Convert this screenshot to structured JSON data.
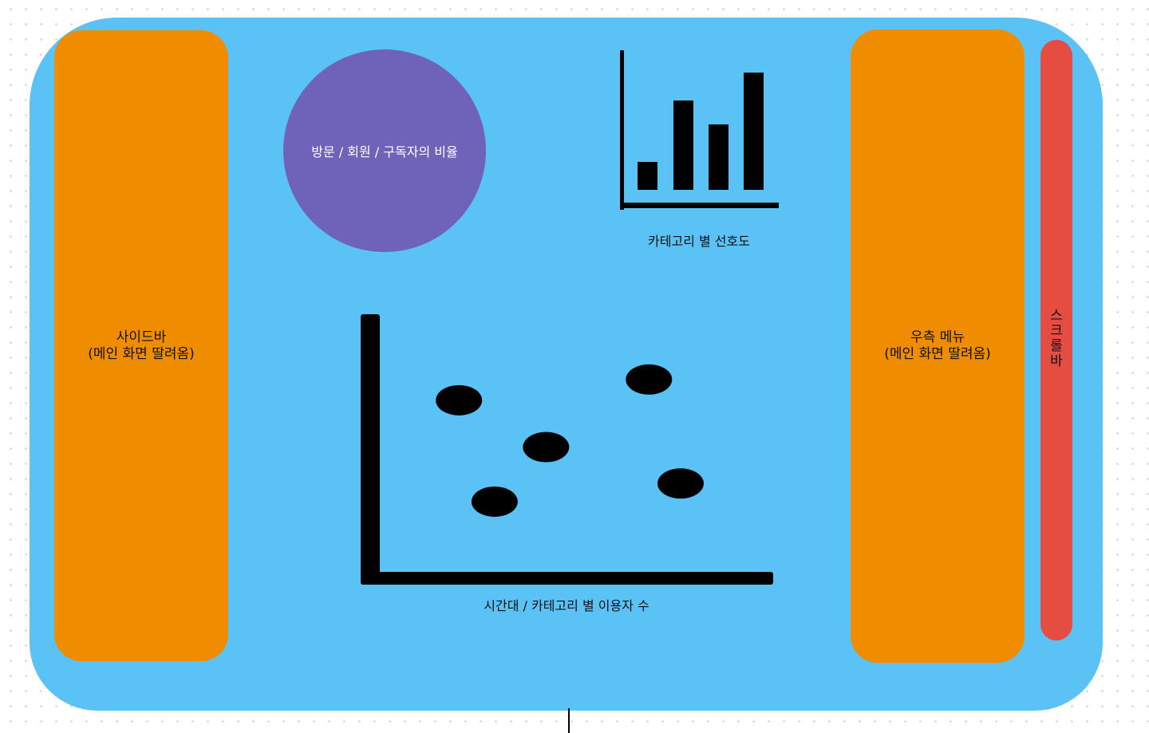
{
  "sidebar": {
    "label": "사이드바\n(메인 화면 딸려옴)"
  },
  "right_menu": {
    "label": "우측 메뉴\n(메인 화면 딸려옴)"
  },
  "scrollbar": {
    "label": "스크롤바"
  },
  "ratio_widget": {
    "label": "방문 / 회원 / 구독자의 비율"
  },
  "colors": {
    "canvas": "#5bc2f6",
    "panel": "#ef8c00",
    "scrollbar": "#e64d42",
    "circle": "#6f63b9",
    "ink": "#000000"
  },
  "chart_data": [
    {
      "type": "bar",
      "caption": "카테고리 별 선호도",
      "values": [
        35,
        112,
        82,
        147
      ],
      "ylim": [
        0,
        170
      ],
      "grid": false
    },
    {
      "type": "scatter",
      "caption": "시간대 / 카테고리 별 이용자 수",
      "points": [
        {
          "x": 20,
          "y": 66
        },
        {
          "x": 29,
          "y": 27
        },
        {
          "x": 42,
          "y": 48
        },
        {
          "x": 68,
          "y": 74
        },
        {
          "x": 76,
          "y": 34
        }
      ],
      "xlim": [
        0,
        100
      ],
      "ylim": [
        0,
        100
      ],
      "grid": false
    }
  ]
}
